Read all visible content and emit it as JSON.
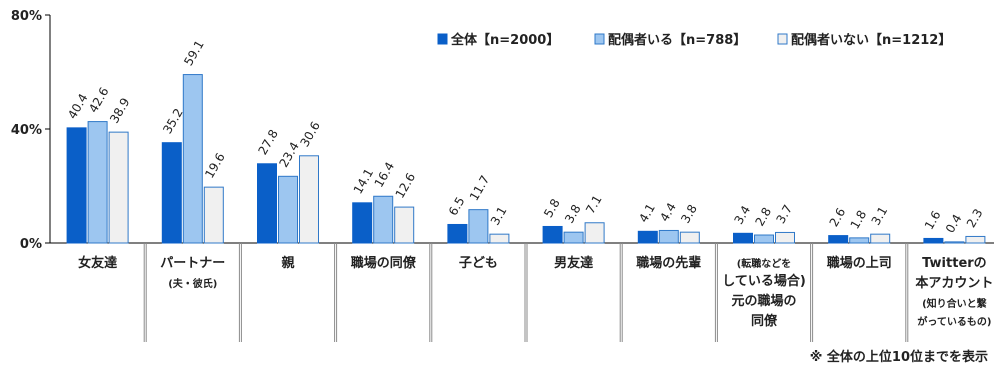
{
  "chart_data": {
    "type": "bar",
    "categories": [
      {
        "lines": [
          "女友達"
        ]
      },
      {
        "lines": [
          "パートナー",
          "(夫・彼氏)"
        ]
      },
      {
        "lines": [
          "親"
        ]
      },
      {
        "lines": [
          "職場の同僚"
        ]
      },
      {
        "lines": [
          "子ども"
        ]
      },
      {
        "lines": [
          "男友達"
        ]
      },
      {
        "lines": [
          "職場の先輩"
        ]
      },
      {
        "lines": [
          "(転職などを",
          "している場合)",
          "元の職場の",
          "同僚"
        ]
      },
      {
        "lines": [
          "職場の上司"
        ]
      },
      {
        "lines": [
          "Twitterの",
          "本アカウント",
          "(知り合いと繋",
          "がっているもの)"
        ]
      }
    ],
    "series": [
      {
        "name": "全体【n=2000】",
        "color": "#0a5fc8",
        "values": [
          40.4,
          35.2,
          27.8,
          14.1,
          6.5,
          5.8,
          4.1,
          3.4,
          2.6,
          1.6
        ]
      },
      {
        "name": "配偶者いる【n=788】",
        "color": "#9dc6f0",
        "values": [
          42.6,
          59.1,
          23.4,
          16.4,
          11.7,
          3.8,
          4.4,
          2.8,
          1.8,
          0.4
        ]
      },
      {
        "name": "配偶者いない【n=1212】",
        "color": "#f0f0f0",
        "values": [
          38.9,
          19.6,
          30.6,
          12.6,
          3.1,
          7.1,
          3.8,
          3.7,
          3.1,
          2.3
        ]
      }
    ],
    "y_ticks": [
      "0%",
      "40%",
      "80%"
    ],
    "ylim": [
      0,
      80
    ],
    "legend_position": "top-right",
    "grid": false
  },
  "footnote": "※ 全体の上位10位までを表示"
}
